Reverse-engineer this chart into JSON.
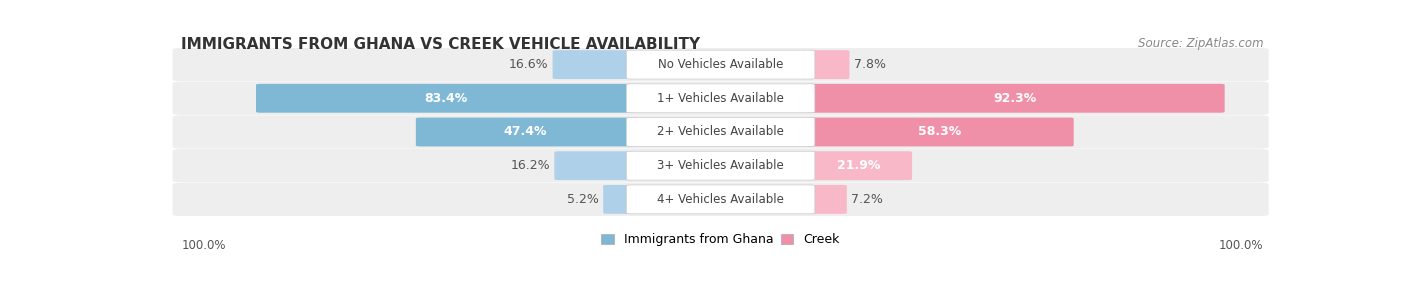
{
  "title": "IMMIGRANTS FROM GHANA VS CREEK VEHICLE AVAILABILITY",
  "source": "Source: ZipAtlas.com",
  "categories": [
    "No Vehicles Available",
    "1+ Vehicles Available",
    "2+ Vehicles Available",
    "3+ Vehicles Available",
    "4+ Vehicles Available"
  ],
  "ghana_values": [
    16.6,
    83.4,
    47.4,
    16.2,
    5.2
  ],
  "creek_values": [
    7.8,
    92.3,
    58.3,
    21.9,
    7.2
  ],
  "ghana_color": "#7eb8d4",
  "creek_color": "#f090a8",
  "ghana_light_color": "#aed0e8",
  "creek_light_color": "#f8b8c8",
  "row_bg_color": "#eeeeee",
  "label_font_size": 9,
  "title_font_size": 11,
  "source_font_size": 8.5,
  "legend_ghana": "Immigrants from Ghana",
  "legend_creek": "Creek",
  "left_label": "100.0%",
  "right_label": "100.0%"
}
